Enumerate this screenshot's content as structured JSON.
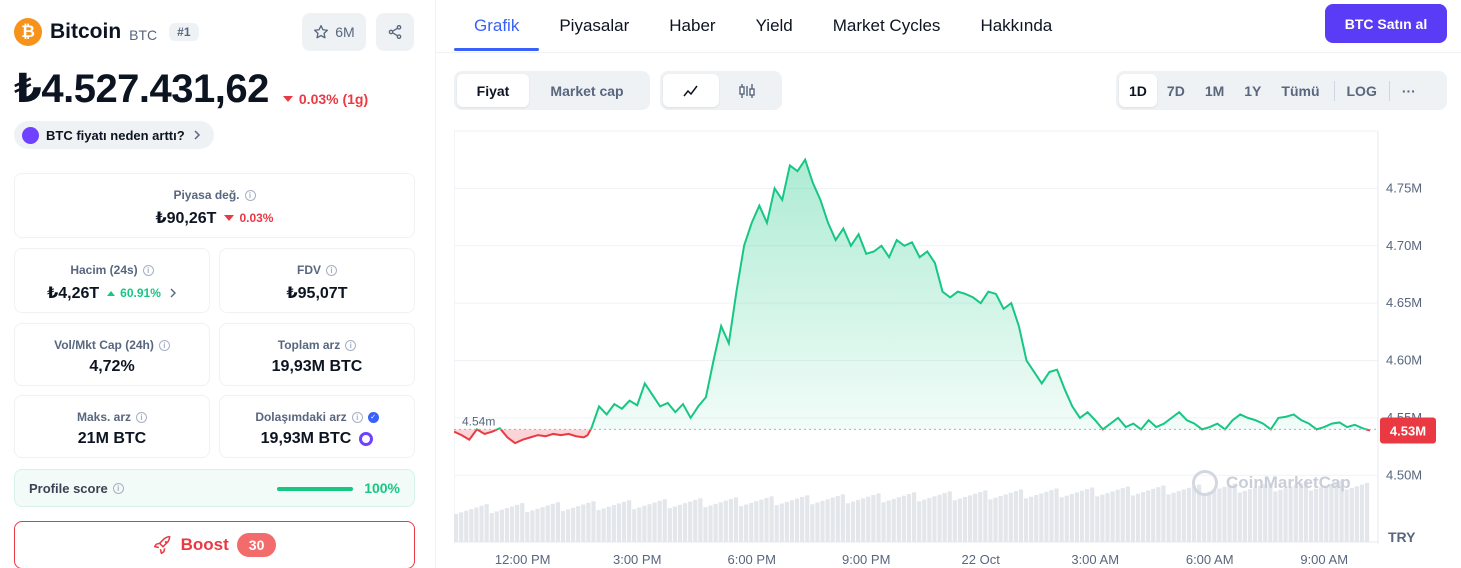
{
  "coin": {
    "name": "Bitcoin",
    "symbol": "BTC",
    "rank": "#1",
    "watchlist_count": "6M",
    "price": "₺4.527.431,62",
    "price_change": "0.03% (1g)",
    "why_text": "BTC fiyatı neden arttı?"
  },
  "stats": {
    "market_cap": {
      "label": "Piyasa değ.",
      "value": "₺90,26T",
      "change": "0.03%"
    },
    "volume": {
      "label": "Hacim (24s)",
      "value": "₺4,26T",
      "change": "60.91%"
    },
    "fdv": {
      "label": "FDV",
      "value": "₺95,07T"
    },
    "vol_mkt_cap": {
      "label": "Vol/Mkt Cap (24h)",
      "value": "4,72%"
    },
    "total_supply": {
      "label": "Toplam arz",
      "value": "19,93M BTC"
    },
    "max_supply": {
      "label": "Maks. arz",
      "value": "21M BTC"
    },
    "circulating_supply": {
      "label": "Dolaşımdaki arz",
      "value": "19,93M BTC"
    }
  },
  "profile": {
    "label": "Profile score",
    "value": "100%",
    "score_fraction": 1.0
  },
  "boost": {
    "label": "Boost",
    "count": "30"
  },
  "tabs": [
    {
      "label": "Grafik",
      "active": true
    },
    {
      "label": "Piyasalar"
    },
    {
      "label": "Haber"
    },
    {
      "label": "Yield"
    },
    {
      "label": "Market Cycles"
    },
    {
      "label": "Hakkında"
    }
  ],
  "buy_button": "BTC Satın al",
  "chart_toggle": {
    "price": "Fiyat",
    "market_cap": "Market cap"
  },
  "ranges": [
    "1D",
    "7D",
    "1M",
    "1Y",
    "Tümü"
  ],
  "log_label": "LOG",
  "more_label": "···",
  "watermark": "CoinMarketCap",
  "colors": {
    "up": "#16c784",
    "down": "#ea3943",
    "accent": "#3861fb",
    "buy": "#5b3cf6"
  },
  "chart_data": {
    "type": "area",
    "currency_label": "TRY",
    "baseline": 4.54,
    "baseline_label": "4.54m",
    "current_label": "4.53M",
    "ylim": [
      4.495,
      4.8
    ],
    "y_ticks": [
      4.5,
      4.55,
      4.6,
      4.65,
      4.7,
      4.75
    ],
    "y_tick_labels": [
      "4.50M",
      "4.55M",
      "4.60M",
      "4.65M",
      "4.70M",
      "4.75M"
    ],
    "x_tick_labels": [
      "12:00 PM",
      "3:00 PM",
      "6:00 PM",
      "9:00 PM",
      "22 Oct",
      "3:00 AM",
      "6:00 AM",
      "9:00 AM"
    ],
    "x_tick_hours": [
      1.8,
      4.8,
      7.8,
      10.8,
      13.8,
      16.8,
      19.8,
      22.8
    ],
    "x_range_hours": [
      0,
      24
    ],
    "series": [
      {
        "x": [
          0,
          0.2,
          0.4,
          0.6,
          0.8,
          1,
          1.2,
          1.4,
          1.6,
          1.8,
          2,
          2.2,
          2.4,
          2.6,
          2.8,
          3,
          3.2,
          3.4,
          3.5,
          3.6,
          3.8,
          4,
          4.2,
          4.4,
          4.6,
          4.8,
          5,
          5.2,
          5.4,
          5.6,
          5.8,
          6,
          6.2,
          6.4,
          6.6,
          6.8,
          7,
          7.2,
          7.4,
          7.6,
          7.8,
          8,
          8.2,
          8.4,
          8.6,
          8.8,
          9,
          9.2,
          9.4,
          9.6,
          9.8,
          10,
          10.2,
          10.4,
          10.6,
          10.8,
          11,
          11.2,
          11.4,
          11.6,
          11.8,
          12,
          12.2,
          12.4,
          12.6,
          12.8,
          13,
          13.2,
          13.4,
          13.6,
          13.8,
          14,
          14.2,
          14.4,
          14.6,
          14.8,
          15,
          15.2,
          15.4,
          15.6,
          15.8,
          16,
          16.2,
          16.4,
          16.6,
          16.8,
          17,
          17.2,
          17.4,
          17.6,
          17.8,
          18,
          18.2,
          18.4,
          18.6,
          18.8,
          19,
          19.2,
          19.4,
          19.6,
          19.8,
          20,
          20.2,
          20.4,
          20.6,
          20.8,
          21,
          21.2,
          21.4,
          21.6,
          21.8,
          22,
          22.2,
          22.4,
          22.6,
          22.8,
          23,
          23.2,
          23.4,
          23.6,
          23.8,
          24
        ],
        "y": [
          4.538,
          4.535,
          4.531,
          4.54,
          4.536,
          4.538,
          4.541,
          4.533,
          4.528,
          4.531,
          4.533,
          4.535,
          4.534,
          4.536,
          4.535,
          4.536,
          4.534,
          4.533,
          4.535,
          4.541,
          4.56,
          4.553,
          4.562,
          4.558,
          4.565,
          4.561,
          4.58,
          4.57,
          4.56,
          4.563,
          4.555,
          4.562,
          4.55,
          4.56,
          4.568,
          4.6,
          4.63,
          4.615,
          4.66,
          4.7,
          4.72,
          4.735,
          4.72,
          4.75,
          4.74,
          4.77,
          4.765,
          4.775,
          4.755,
          4.74,
          4.72,
          4.705,
          4.715,
          4.7,
          4.71,
          4.693,
          4.695,
          4.7,
          4.69,
          4.705,
          4.7,
          4.703,
          4.69,
          4.695,
          4.685,
          4.66,
          4.655,
          4.66,
          4.658,
          4.655,
          4.65,
          4.66,
          4.658,
          4.645,
          4.65,
          4.63,
          4.6,
          4.59,
          4.58,
          4.59,
          4.592,
          4.575,
          4.56,
          4.55,
          4.555,
          4.548,
          4.54,
          4.545,
          4.55,
          4.542,
          4.545,
          4.54,
          4.548,
          4.542,
          4.545,
          4.55,
          4.555,
          4.548,
          4.545,
          4.54,
          4.542,
          4.545,
          4.54,
          4.548,
          4.553,
          4.55,
          4.548,
          4.545,
          4.54,
          4.55,
          4.551,
          4.553,
          4.548,
          4.545,
          4.54,
          4.542,
          4.545,
          4.546,
          4.542,
          4.544,
          4.541,
          4.539
        ]
      }
    ]
  }
}
